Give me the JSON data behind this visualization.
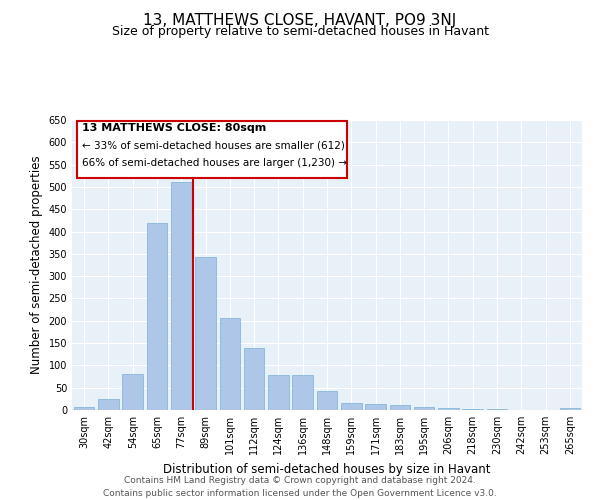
{
  "title": "13, MATTHEWS CLOSE, HAVANT, PO9 3NJ",
  "subtitle": "Size of property relative to semi-detached houses in Havant",
  "xlabel": "Distribution of semi-detached houses by size in Havant",
  "ylabel": "Number of semi-detached properties",
  "categories": [
    "30sqm",
    "42sqm",
    "54sqm",
    "65sqm",
    "77sqm",
    "89sqm",
    "101sqm",
    "112sqm",
    "124sqm",
    "136sqm",
    "148sqm",
    "159sqm",
    "171sqm",
    "183sqm",
    "195sqm",
    "206sqm",
    "218sqm",
    "230sqm",
    "242sqm",
    "253sqm",
    "265sqm"
  ],
  "values": [
    7,
    24,
    80,
    420,
    510,
    343,
    207,
    140,
    78,
    78,
    42,
    15,
    13,
    11,
    7,
    4,
    3,
    2,
    1,
    1,
    5
  ],
  "bar_color": "#aec6e8",
  "bar_edge_color": "#7aafd4",
  "highlight_line_color": "#cc0000",
  "highlight_bar_index": 4,
  "annotation_title": "13 MATTHEWS CLOSE: 80sqm",
  "annotation_line1": "← 33% of semi-detached houses are smaller (612)",
  "annotation_line2": "66% of semi-detached houses are larger (1,230) →",
  "annotation_box_color": "#cc0000",
  "ylim": [
    0,
    650
  ],
  "yticks": [
    0,
    50,
    100,
    150,
    200,
    250,
    300,
    350,
    400,
    450,
    500,
    550,
    600,
    650
  ],
  "bg_color": "#e8f0f8",
  "footer_line1": "Contains HM Land Registry data © Crown copyright and database right 2024.",
  "footer_line2": "Contains public sector information licensed under the Open Government Licence v3.0.",
  "title_fontsize": 11,
  "subtitle_fontsize": 9,
  "xlabel_fontsize": 8.5,
  "ylabel_fontsize": 8.5,
  "tick_fontsize": 7,
  "footer_fontsize": 6.5,
  "ann_title_fontsize": 8,
  "ann_text_fontsize": 7.5
}
